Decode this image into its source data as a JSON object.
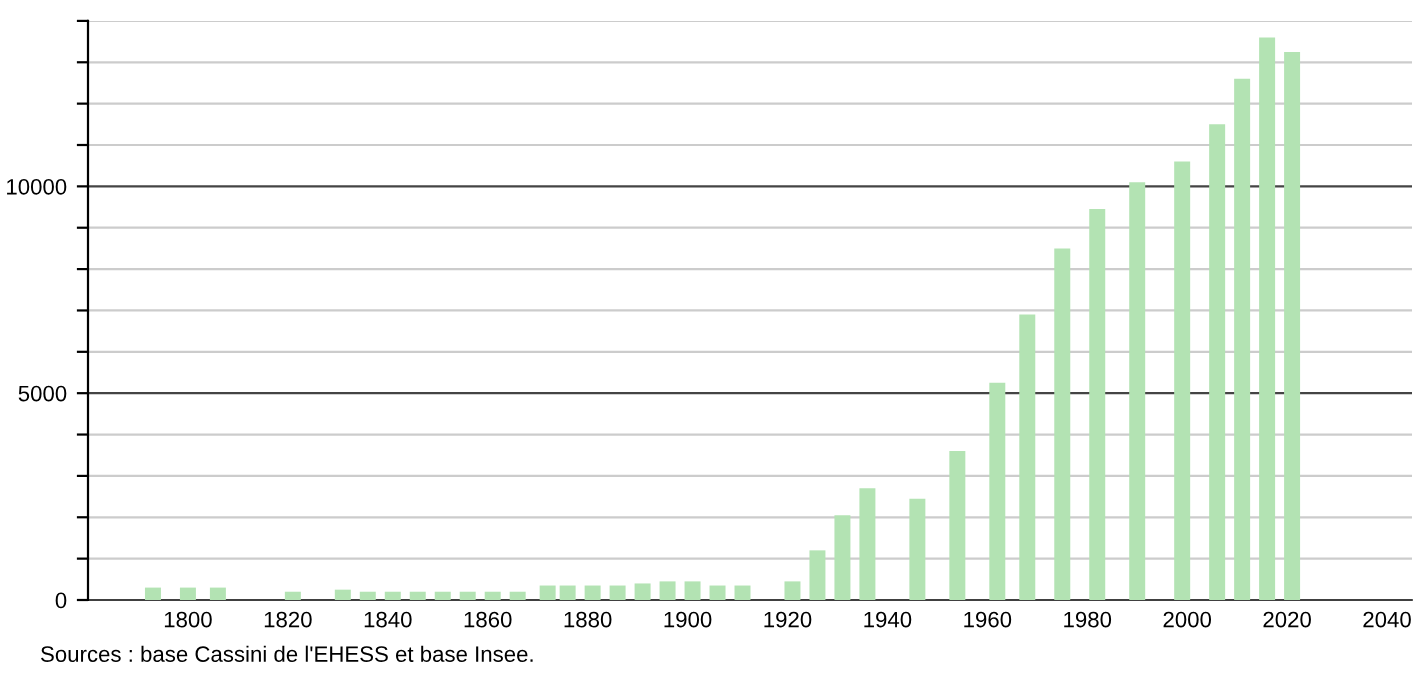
{
  "chart_data": {
    "type": "bar",
    "annotations": [
      "Sources : base Cassini de l'EHESS et base Insee."
    ],
    "x": [
      1793,
      1800,
      1806,
      1821,
      1831,
      1836,
      1841,
      1846,
      1851,
      1856,
      1861,
      1866,
      1872,
      1876,
      1881,
      1886,
      1891,
      1896,
      1901,
      1906,
      1911,
      1921,
      1926,
      1931,
      1936,
      1946,
      1954,
      1962,
      1968,
      1975,
      1982,
      1990,
      1999,
      2006,
      2011,
      2016,
      2021
    ],
    "values": [
      300,
      300,
      300,
      200,
      250,
      200,
      200,
      200,
      200,
      200,
      200,
      200,
      350,
      350,
      350,
      350,
      400,
      450,
      450,
      350,
      350,
      450,
      1200,
      2050,
      2700,
      2450,
      3600,
      5250,
      6900,
      8500,
      9450,
      10100,
      10600,
      11500,
      12600,
      13600,
      13250
    ],
    "color": "#b3e3b3",
    "xlim": [
      1780,
      2045
    ],
    "xticks": [
      1800,
      1820,
      1840,
      1860,
      1880,
      1900,
      1920,
      1940,
      1960,
      1980,
      2000,
      2020,
      2040
    ],
    "ylim": [
      0,
      14000
    ],
    "yticks": [
      0,
      {
        "value": 1000,
        "label": null
      },
      {
        "value": 2000,
        "label": null
      },
      {
        "value": 3000,
        "label": null
      },
      {
        "value": 4000,
        "label": null
      },
      5000,
      {
        "value": 6000,
        "label": null
      },
      {
        "value": 7000,
        "label": null
      },
      {
        "value": 8000,
        "label": null
      },
      {
        "value": 9000,
        "label": null
      },
      10000,
      {
        "value": 11000,
        "label": null
      },
      {
        "value": 12000,
        "label": null
      },
      {
        "value": 13000,
        "label": null
      },
      {
        "value": 14000,
        "label": null
      }
    ],
    "grid": "y",
    "legend": false
  }
}
